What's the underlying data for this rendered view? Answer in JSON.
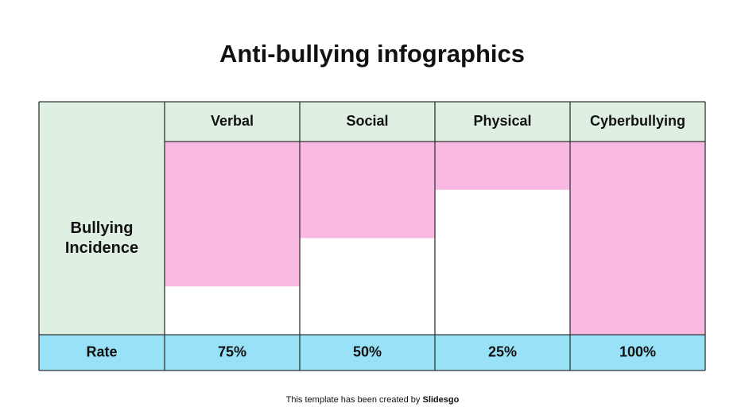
{
  "chart_data": {
    "type": "bar",
    "title": "Anti-bullying infographics",
    "row_label": "Bullying Incidence",
    "rate_label": "Rate",
    "categories": [
      "Verbal",
      "Social",
      "Physical",
      "Cyberbullying"
    ],
    "values": [
      75,
      50,
      25,
      100
    ],
    "value_labels": [
      "75%",
      "50%",
      "25%",
      "100%"
    ],
    "ylim": [
      0,
      100
    ],
    "color": "#f9b8e2",
    "header_color": "#dff0e3",
    "rate_color": "#99e1f7"
  },
  "footer": {
    "text": "This template has been created by",
    "brand": "Slidesgo"
  }
}
